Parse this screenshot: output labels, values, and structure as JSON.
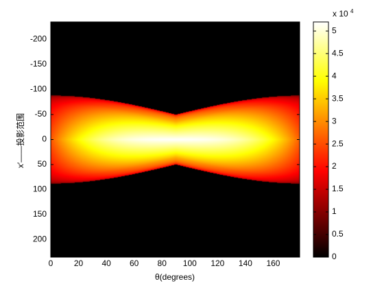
{
  "chart_data": {
    "type": "heatmap",
    "title": "",
    "xlabel": "θ(degrees)",
    "ylabel": "x′——投影范围",
    "xlim": [
      0,
      179
    ],
    "ylim": [
      -235,
      235
    ],
    "y_reversed": true,
    "x_ticks": [
      0,
      20,
      40,
      60,
      80,
      100,
      120,
      140,
      160
    ],
    "x_tick_labels": [
      "0",
      "20",
      "40",
      "60",
      "80",
      "100",
      "120",
      "140",
      "160"
    ],
    "y_ticks": [
      -200,
      -150,
      -100,
      -50,
      0,
      50,
      100,
      150,
      200
    ],
    "y_tick_labels": [
      "-200",
      "-150",
      "-100",
      "-50",
      "0",
      "50",
      "100",
      "150",
      "200"
    ],
    "colormap": "hot",
    "colorbar": {
      "range": [
        0,
        5.2
      ],
      "multiplier_label": "x 10",
      "multiplier_exponent": "4",
      "ticks": [
        0,
        0.5,
        1,
        1.5,
        2,
        2.5,
        3,
        3.5,
        4,
        4.5,
        5
      ],
      "tick_labels": [
        "0",
        "0.5",
        "1",
        "1.5",
        "2",
        "2.5",
        "3",
        "3.5",
        "4",
        "4.5",
        "5"
      ]
    },
    "description_values": {
      "support_edge_at_0_deg": 88,
      "support_edge_at_90_deg": 50,
      "support_edge_at_180_deg": 88,
      "max_value_x1e4": 5.2,
      "max_near_theta": [
        60,
        120
      ],
      "colors": [
        "#000000",
        "#ff0000",
        "#ffff00",
        "#ffffff"
      ]
    }
  }
}
